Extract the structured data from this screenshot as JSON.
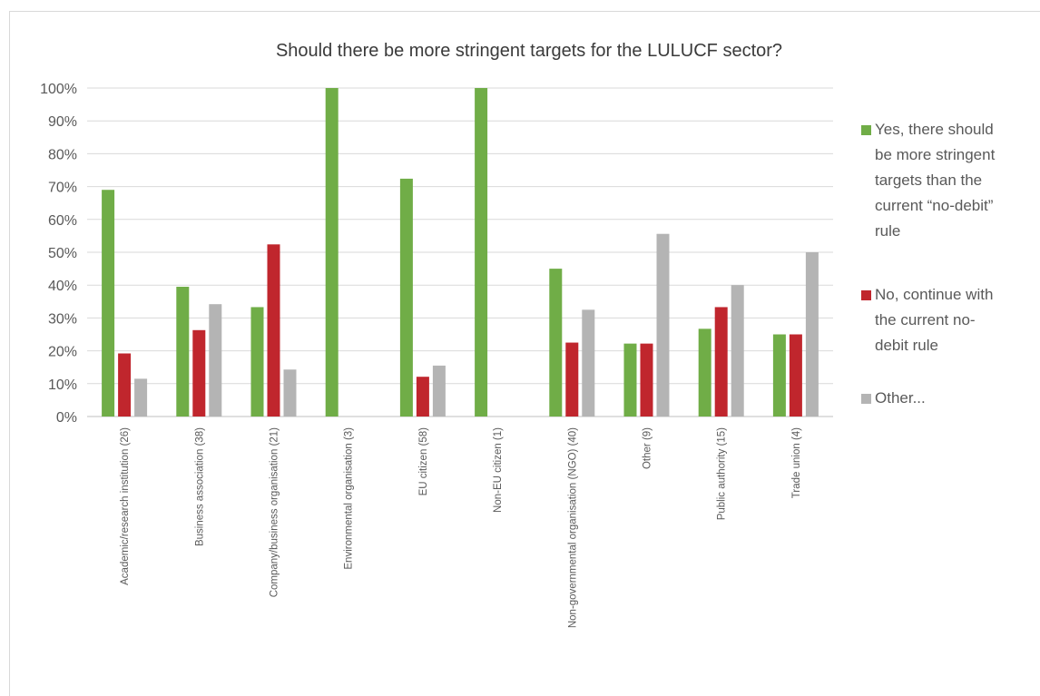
{
  "chart_data": {
    "type": "bar",
    "title": "Should there be more stringent targets for the LULUCF sector?",
    "xlabel": "",
    "ylabel": "",
    "ylim": [
      0,
      1
    ],
    "y_ticks": [
      "0%",
      "10%",
      "20%",
      "30%",
      "40%",
      "50%",
      "60%",
      "70%",
      "80%",
      "90%",
      "100%"
    ],
    "grid": true,
    "legend_position": "right",
    "categories": [
      "Academic/research institution (26)",
      "Business association (38)",
      "Company/business organisation (21)",
      "Environmental organisation (3)",
      "EU citizen (58)",
      "Non-EU citizen (1)",
      "Non-governmental organisation (NGO) (40)",
      "Other (9)",
      "Public authority (15)",
      "Trade union (4)"
    ],
    "series": [
      {
        "name": "Yes, there should be more stringent targets than the current “no-debit” rule",
        "legend_lines": [
          "Yes, there should",
          "be more stringent",
          "targets than the",
          "current “no-debit”",
          "rule"
        ],
        "color": "#70ad47",
        "values": [
          0.69,
          0.395,
          0.333,
          1.0,
          0.724,
          1.0,
          0.45,
          0.222,
          0.267,
          0.25
        ]
      },
      {
        "name": "No, continue with the current no-debit rule",
        "legend_lines": [
          "No, continue with",
          "the current no-",
          "debit rule"
        ],
        "color": "#c0262d",
        "values": [
          0.192,
          0.263,
          0.524,
          0.0,
          0.121,
          0.0,
          0.225,
          0.222,
          0.333,
          0.25
        ]
      },
      {
        "name": "Other...",
        "legend_lines": [
          "Other..."
        ],
        "color": "#b4b4b4",
        "values": [
          0.115,
          0.342,
          0.143,
          0.0,
          0.155,
          0.0,
          0.325,
          0.556,
          0.4,
          0.5
        ]
      }
    ]
  }
}
